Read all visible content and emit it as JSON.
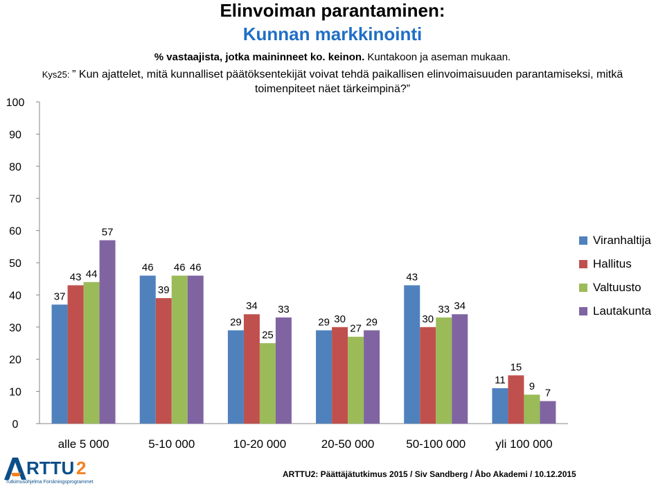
{
  "header": {
    "title_line1": "Elinvoiman parantaminen:",
    "title_line2": "Kunnan markkinointi",
    "subtitle_bold": "% vastaajista, jotka maininneet ko. keinon.",
    "subtitle_rest": " Kuntakoon ja aseman mukaan.",
    "question_prefix": "Kys25: ",
    "question_text": "” Kun ajattelet, mitä kunnalliset päätöksentekijät voivat tehdä paikallisen elinvoimaisuuden parantamiseksi, mitkä toimenpiteet näet tärkeimpinä?”"
  },
  "chart_data": {
    "type": "bar",
    "categories": [
      "alle 5 000",
      "5-10 000",
      "10-20 000",
      "20-50 000",
      "50-100 000",
      "yli 100 000"
    ],
    "series": [
      {
        "name": "Viranhaltija",
        "color": "#4f81bd",
        "values": [
          37,
          46,
          29,
          29,
          43,
          11
        ]
      },
      {
        "name": "Hallitus",
        "color": "#c0504d",
        "values": [
          43,
          39,
          34,
          30,
          30,
          15
        ]
      },
      {
        "name": "Valtuusto",
        "color": "#9bbb59",
        "values": [
          44,
          46,
          25,
          27,
          33,
          9
        ]
      },
      {
        "name": "Lautakunta",
        "color": "#8064a2",
        "values": [
          57,
          46,
          33,
          29,
          34,
          7
        ]
      }
    ],
    "ylim": [
      0,
      100
    ],
    "yticks": [
      0,
      10,
      20,
      30,
      40,
      50,
      60,
      70,
      80,
      90,
      100
    ],
    "grid": false,
    "legend_position": "right"
  },
  "logo": {
    "name": "ARTTU2",
    "tagline": "Tutkimusohjelma Forskningsprogrammet"
  },
  "footer": {
    "text": "ARTTU2: Päättäjätutkimus 2015 / Siv Sandberg / Åbo Akademi / 10.12.2015"
  }
}
